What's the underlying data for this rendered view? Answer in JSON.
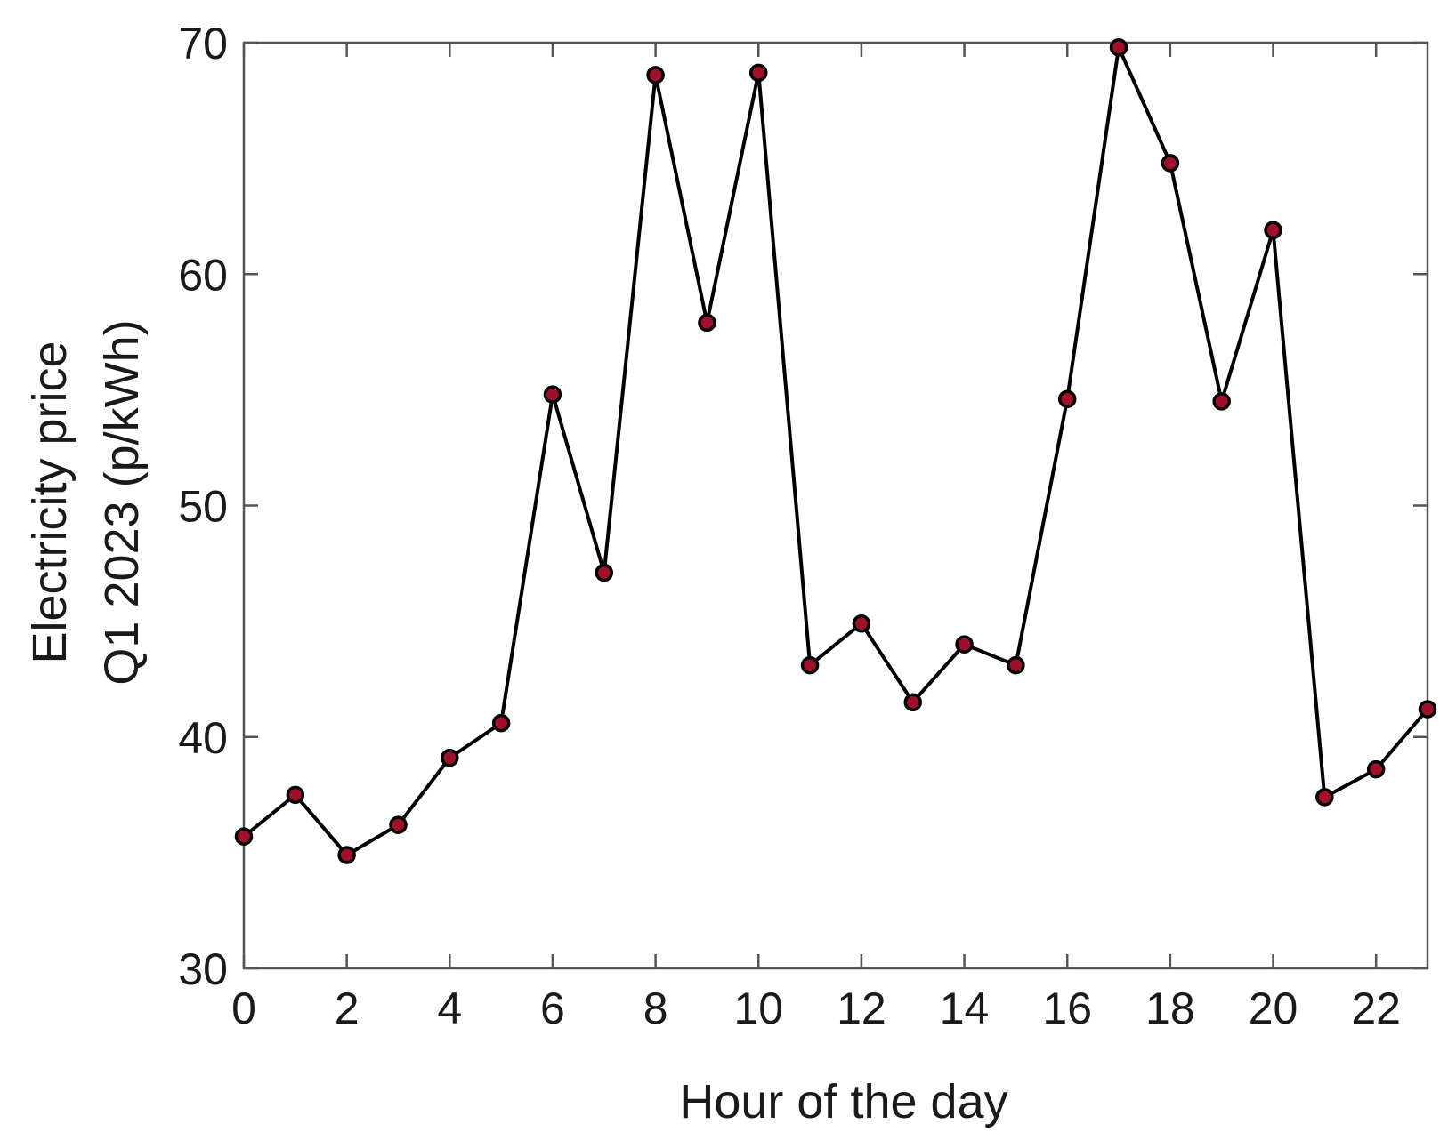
{
  "chart_data": {
    "type": "line",
    "xlabel": "Hour of the day",
    "ylabel_lines": [
      "Electricity price",
      "Q1 2023 (p/kWh)"
    ],
    "xlim": [
      0,
      23
    ],
    "ylim": [
      30,
      70
    ],
    "x_ticks": [
      0,
      2,
      4,
      6,
      8,
      10,
      12,
      14,
      16,
      18,
      20,
      22
    ],
    "y_ticks": [
      30,
      40,
      50,
      60,
      70
    ],
    "grid": false,
    "colors": {
      "line": "#000000",
      "marker_fill": "#a0102a",
      "marker_edge": "#000000",
      "axes": "#555555"
    },
    "series": [
      {
        "x": [
          0,
          1,
          2,
          3,
          4,
          5,
          6,
          7,
          8,
          9,
          10,
          11,
          12,
          13,
          14,
          15,
          16,
          17,
          18,
          19,
          20,
          21,
          22,
          23
        ],
        "y": [
          35.7,
          37.5,
          34.9,
          36.2,
          39.1,
          40.6,
          54.8,
          47.1,
          68.6,
          57.9,
          68.7,
          43.1,
          44.9,
          41.5,
          44.0,
          43.1,
          54.6,
          69.8,
          64.8,
          54.5,
          61.9,
          37.4,
          38.6,
          41.2
        ]
      }
    ]
  }
}
